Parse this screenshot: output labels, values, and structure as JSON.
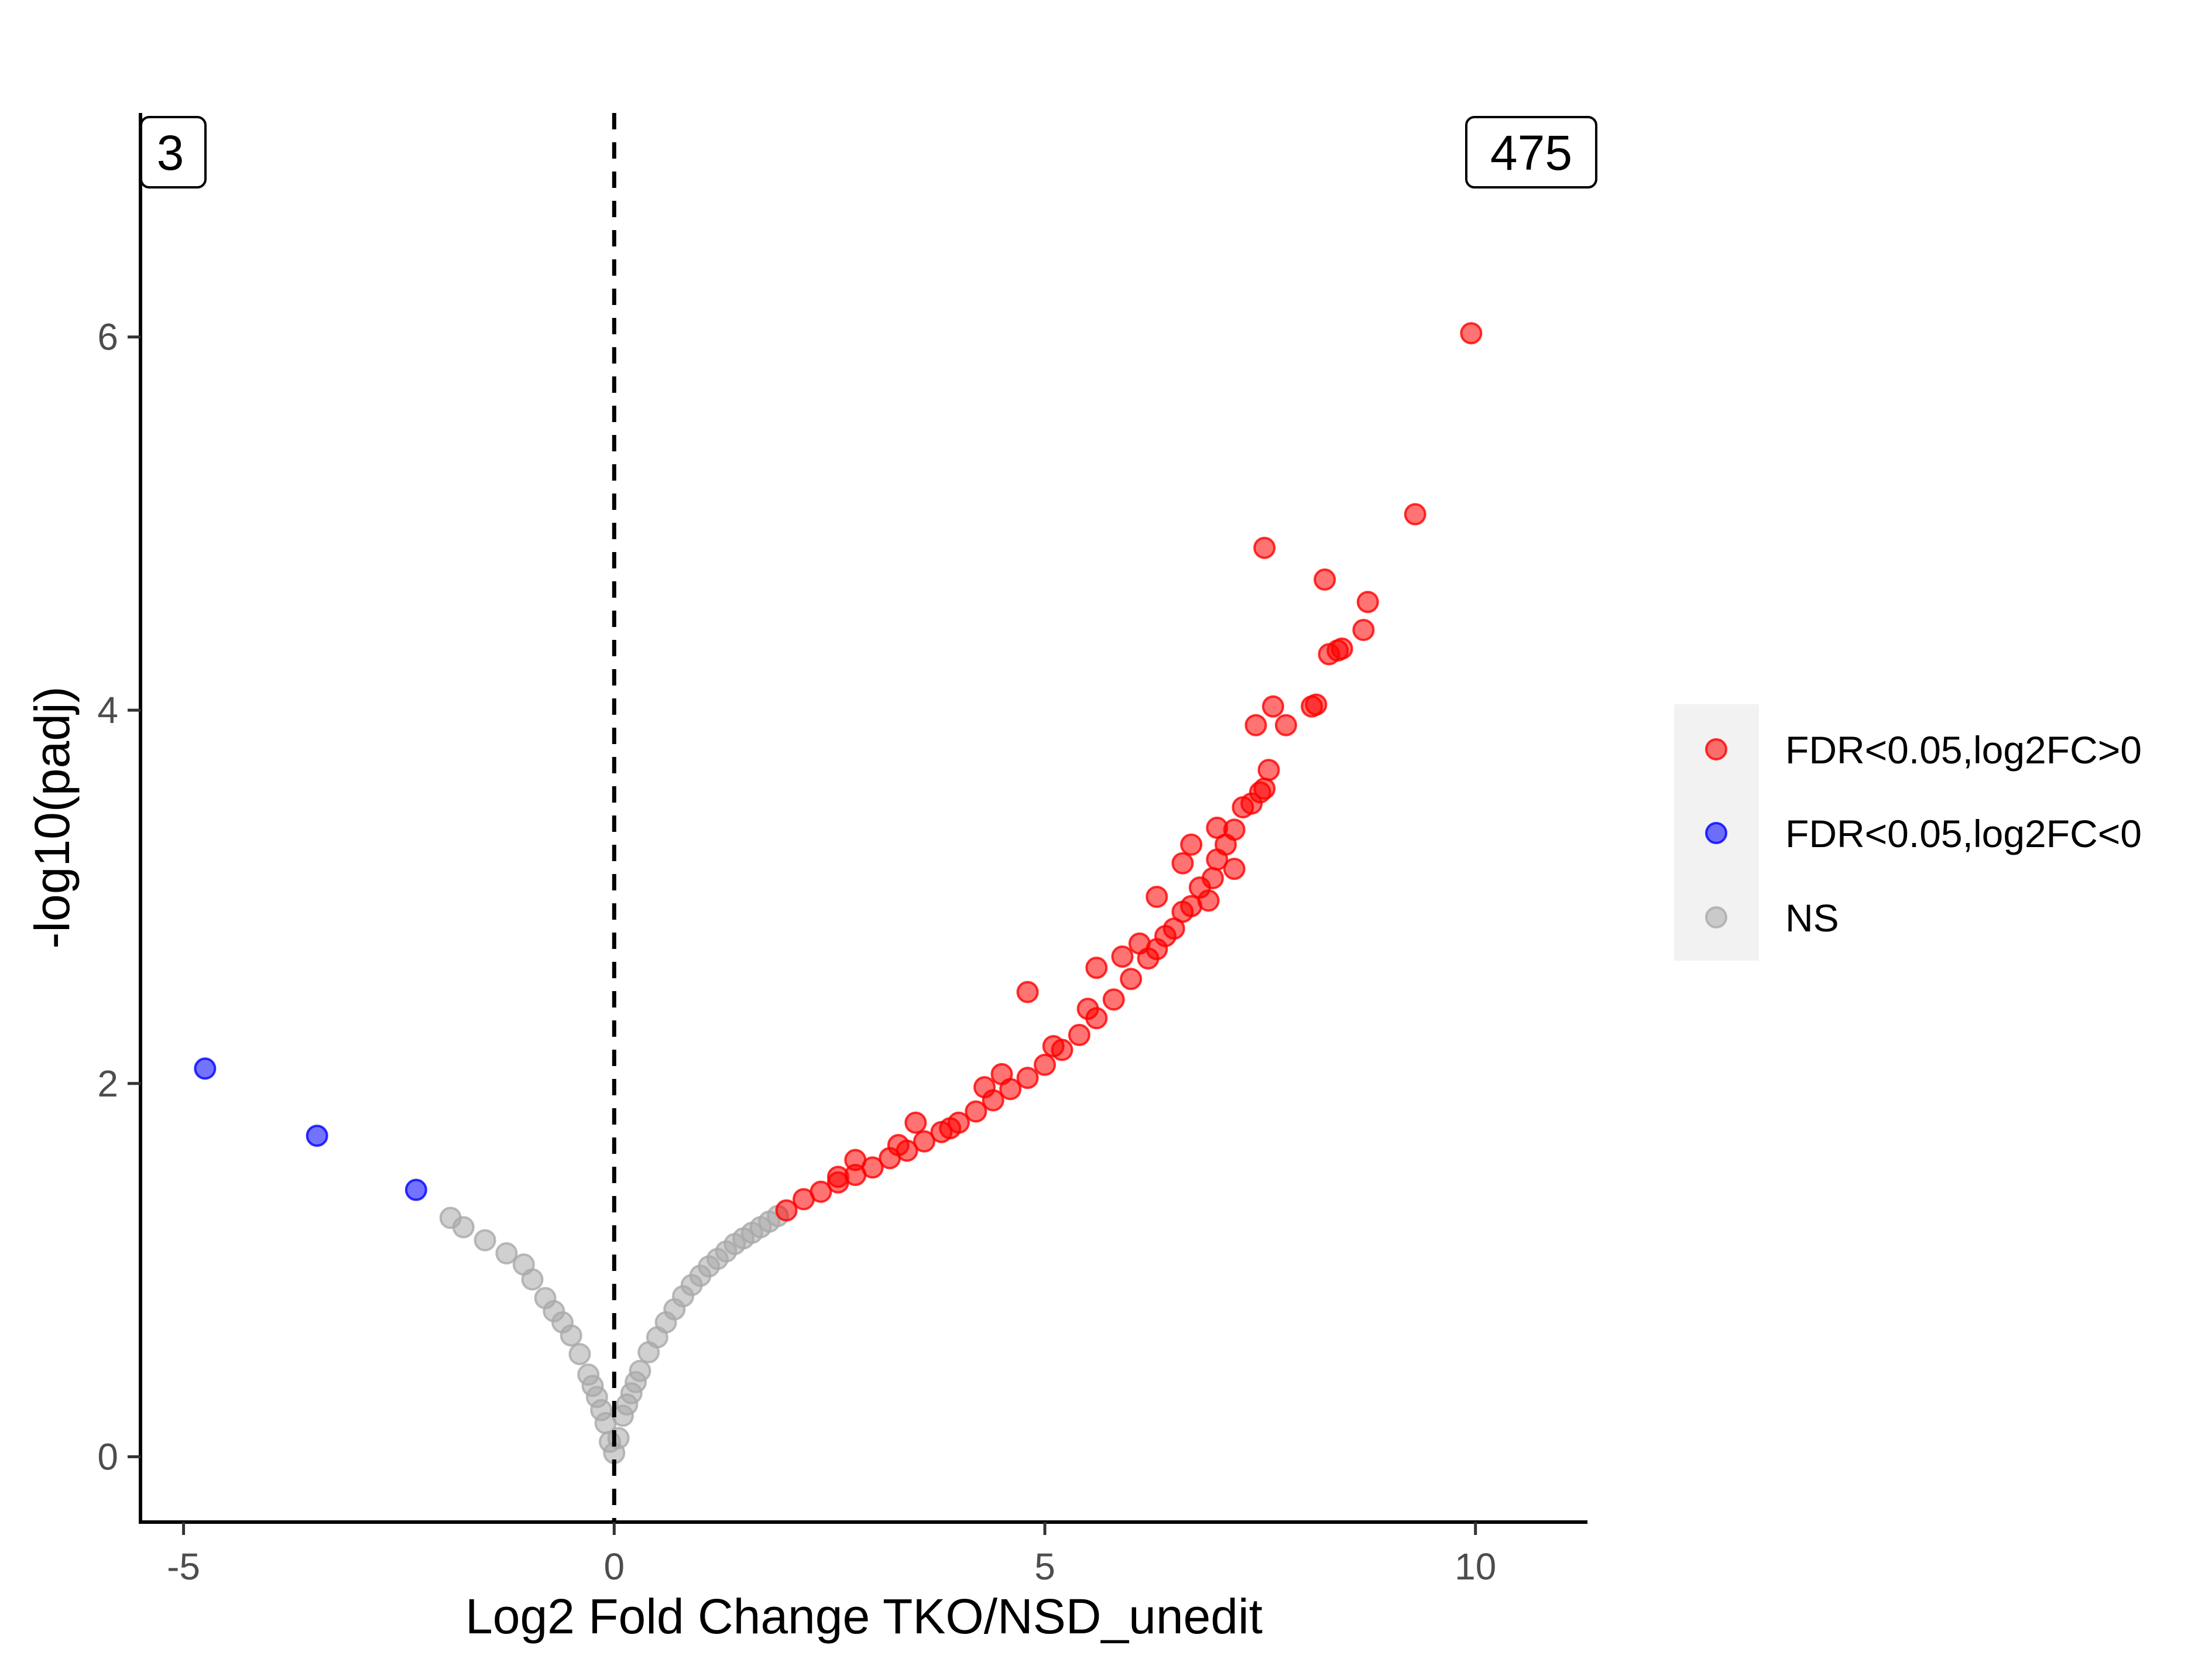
{
  "chart_data": {
    "type": "scatter",
    "title": "",
    "xlabel": "Log2 Fold Change TKO/NSD_unedit",
    "ylabel": "-log10(padj)",
    "xlim": [
      -5.5,
      11.3
    ],
    "ylim": [
      -0.35,
      7.2
    ],
    "x_ticks": [
      -5,
      0,
      5,
      10
    ],
    "x_tick_labels": [
      "-5",
      "0",
      "5",
      "10"
    ],
    "y_ticks": [
      0,
      2,
      4,
      6
    ],
    "y_tick_labels": [
      "0",
      "2",
      "4",
      "6"
    ],
    "vline_x": 0,
    "grid": false,
    "legend_position": "right",
    "annotations": {
      "down_count": "3",
      "up_count": "475"
    },
    "series": [
      {
        "name": "FDR<0.05,log2FC>0",
        "color": "#FF0000",
        "points": [
          [
            2.0,
            1.32
          ],
          [
            2.2,
            1.38
          ],
          [
            2.4,
            1.42
          ],
          [
            2.6,
            1.47
          ],
          [
            2.8,
            1.51
          ],
          [
            3.0,
            1.55
          ],
          [
            3.2,
            1.6
          ],
          [
            3.4,
            1.64
          ],
          [
            3.6,
            1.69
          ],
          [
            3.8,
            1.74
          ],
          [
            4.0,
            1.79
          ],
          [
            4.2,
            1.85
          ],
          [
            4.4,
            1.91
          ],
          [
            4.6,
            1.97
          ],
          [
            4.8,
            2.03
          ],
          [
            5.0,
            2.1
          ],
          [
            5.2,
            2.18
          ],
          [
            5.4,
            2.26
          ],
          [
            5.6,
            2.35
          ],
          [
            5.8,
            2.45
          ],
          [
            6.0,
            2.56
          ],
          [
            6.2,
            2.67
          ],
          [
            6.4,
            2.79
          ],
          [
            6.6,
            2.92
          ],
          [
            6.8,
            3.05
          ],
          [
            7.0,
            3.2
          ],
          [
            7.2,
            3.36
          ],
          [
            7.4,
            3.5
          ],
          [
            7.6,
            3.68
          ],
          [
            2.6,
            1.5
          ],
          [
            3.3,
            1.67
          ],
          [
            3.5,
            1.79
          ],
          [
            2.8,
            1.59
          ],
          [
            4.5,
            2.05
          ],
          [
            4.3,
            1.98
          ],
          [
            5.5,
            2.4
          ],
          [
            4.8,
            2.49
          ],
          [
            5.6,
            2.62
          ],
          [
            5.9,
            2.68
          ],
          [
            6.1,
            2.75
          ],
          [
            6.3,
            2.72
          ],
          [
            6.5,
            2.83
          ],
          [
            6.7,
            2.95
          ],
          [
            6.3,
            3.0
          ],
          [
            6.6,
            3.18
          ],
          [
            6.7,
            3.28
          ],
          [
            6.9,
            2.98
          ],
          [
            7.0,
            3.37
          ],
          [
            7.1,
            3.28
          ],
          [
            7.3,
            3.48
          ],
          [
            7.5,
            3.56
          ],
          [
            7.55,
            3.58
          ],
          [
            7.45,
            3.92
          ],
          [
            7.65,
            4.02
          ],
          [
            7.8,
            3.92
          ],
          [
            8.1,
            4.02
          ],
          [
            8.15,
            4.03
          ],
          [
            8.3,
            4.3
          ],
          [
            8.4,
            4.32
          ],
          [
            8.45,
            4.33
          ],
          [
            8.7,
            4.43
          ],
          [
            8.75,
            4.58
          ],
          [
            8.25,
            4.7
          ],
          [
            7.55,
            4.87
          ],
          [
            9.3,
            5.05
          ],
          [
            9.95,
            6.02
          ],
          [
            6.95,
            3.1
          ],
          [
            7.2,
            3.15
          ],
          [
            5.1,
            2.2
          ],
          [
            3.9,
            1.76
          ]
        ]
      },
      {
        "name": "FDR<0.05,log2FC<0",
        "color": "#0000FF",
        "points": [
          [
            -4.75,
            2.08
          ],
          [
            -3.45,
            1.72
          ],
          [
            -2.3,
            1.43
          ]
        ]
      },
      {
        "name": "NS",
        "color": "#A9A9A9",
        "points": [
          [
            -1.9,
            1.28
          ],
          [
            -1.75,
            1.23
          ],
          [
            -1.5,
            1.16
          ],
          [
            -1.25,
            1.09
          ],
          [
            -1.05,
            1.03
          ],
          [
            -0.95,
            0.95
          ],
          [
            -0.8,
            0.85
          ],
          [
            -0.7,
            0.78
          ],
          [
            -0.6,
            0.72
          ],
          [
            -0.5,
            0.65
          ],
          [
            -0.4,
            0.55
          ],
          [
            -0.3,
            0.44
          ],
          [
            -0.2,
            0.32
          ],
          [
            -0.1,
            0.18
          ],
          [
            0.0,
            0.02
          ],
          [
            0.05,
            0.1
          ],
          [
            0.1,
            0.22
          ],
          [
            0.2,
            0.34
          ],
          [
            0.3,
            0.46
          ],
          [
            0.4,
            0.56
          ],
          [
            0.5,
            0.64
          ],
          [
            0.6,
            0.72
          ],
          [
            0.7,
            0.79
          ],
          [
            0.8,
            0.86
          ],
          [
            0.9,
            0.92
          ],
          [
            1.0,
            0.97
          ],
          [
            1.1,
            1.02
          ],
          [
            1.2,
            1.06
          ],
          [
            1.3,
            1.1
          ],
          [
            1.4,
            1.14
          ],
          [
            1.5,
            1.17
          ],
          [
            1.6,
            1.2
          ],
          [
            1.7,
            1.23
          ],
          [
            1.8,
            1.26
          ],
          [
            1.9,
            1.29
          ],
          [
            -0.05,
            0.08
          ],
          [
            -0.15,
            0.25
          ],
          [
            0.15,
            0.28
          ],
          [
            -0.25,
            0.38
          ],
          [
            0.25,
            0.4
          ]
        ]
      }
    ]
  }
}
